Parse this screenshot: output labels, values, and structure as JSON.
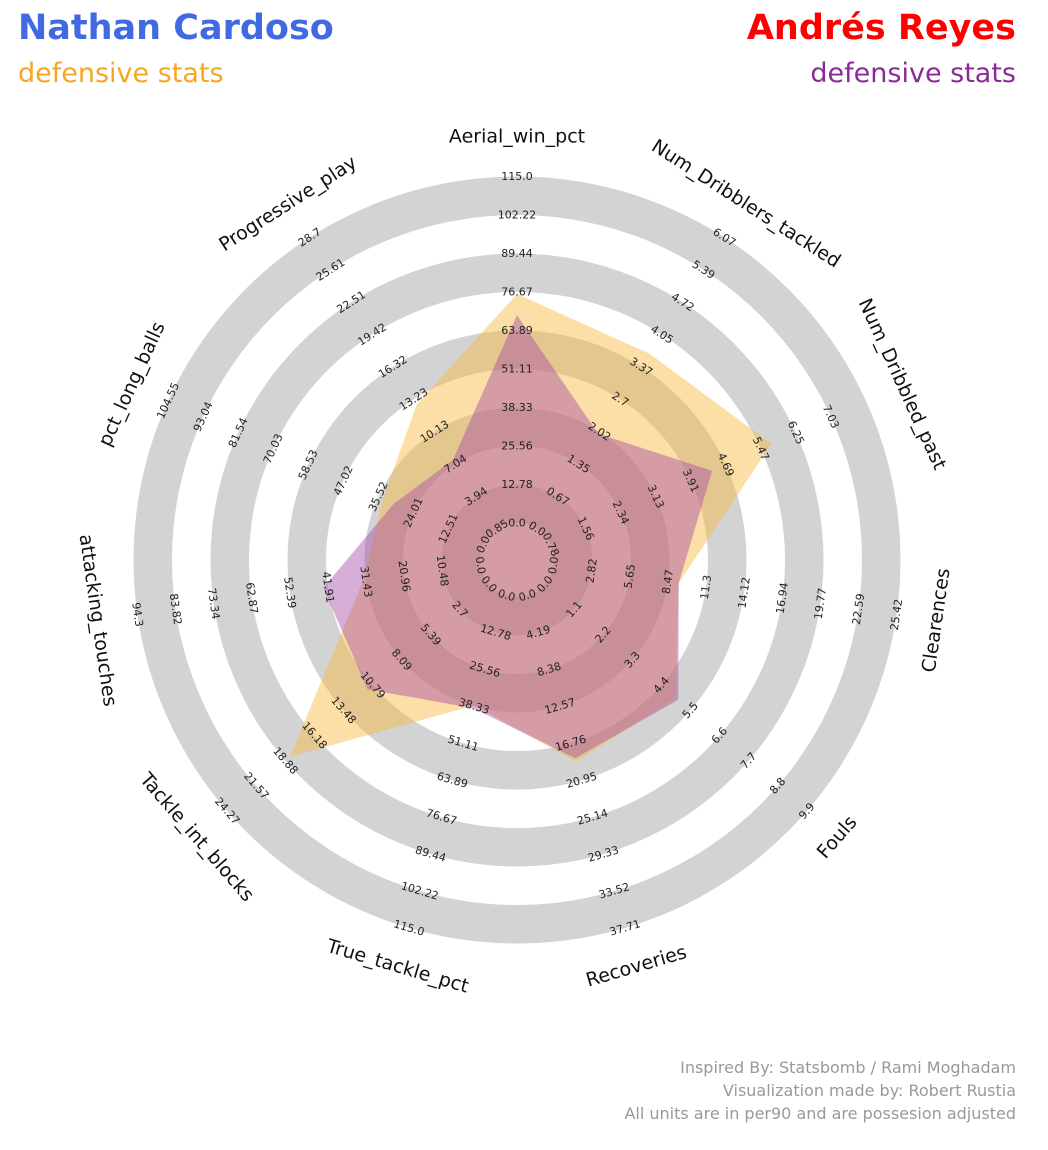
{
  "header": {
    "player1_name": "Nathan Cardoso",
    "player1_subtitle": "defensive stats",
    "player2_name": "Andrés Reyes",
    "player2_subtitle": "defensive stats"
  },
  "colors": {
    "player1_name": "#4169e1",
    "player1_subtitle": "#f5a623",
    "player2_name": "#ff0000",
    "player2_subtitle": "#8b2a96",
    "player1_fill": "#f6b93b",
    "player2_fill": "#a64ca6",
    "ring": "#d3d3d3"
  },
  "credits": {
    "line1": "Inspired By: Statsbomb / Rami Moghadam",
    "line2": "Visualization made by: Robert Rustia",
    "line3": "All units are in per90 and are possesion adjusted"
  },
  "chart_data": {
    "type": "radar",
    "categories": [
      "Aerial_win_pct",
      "Num_Dribblers_tackled",
      "Num_Dribbled_past",
      "Clearences",
      "Fouls",
      "Recoveries",
      "True_tackle_pct",
      "Tackle_int_blocks",
      "attacking_touches",
      "pct_long_balls",
      "Progressive_play"
    ],
    "ranges": [
      [
        0,
        115
      ],
      [
        0,
        6.74
      ],
      [
        0,
        7.81
      ],
      [
        0,
        28.24
      ],
      [
        0,
        11
      ],
      [
        0,
        41.9
      ],
      [
        0,
        115
      ],
      [
        0,
        26.96
      ],
      [
        0,
        104.8
      ],
      [
        0,
        116.16
      ],
      [
        0,
        31.79
      ]
    ],
    "tick_labels": [
      [
        "0.0",
        "12.78",
        "25.56",
        "38.33",
        "51.11",
        "63.89",
        "76.67",
        "89.44",
        "102.22",
        "115.0"
      ],
      [
        "0.0",
        "0.67",
        "1.35",
        "2.02",
        "2.7",
        "3.37",
        "4.05",
        "4.72",
        "5.39",
        "6.07"
      ],
      [
        "0.78",
        "1.56",
        "2.34",
        "3.13",
        "3.91",
        "4.69",
        "5.47",
        "6.25",
        "7.03"
      ],
      [
        "0.0",
        "2.82",
        "5.65",
        "8.47",
        "11.3",
        "14.12",
        "16.94",
        "19.77",
        "22.59",
        "25.42"
      ],
      [
        "0.0",
        "1.1",
        "2.2",
        "3.3",
        "4.4",
        "5.5",
        "6.6",
        "7.7",
        "8.8",
        "9.9"
      ],
      [
        "0.0",
        "4.19",
        "8.38",
        "12.57",
        "16.76",
        "20.95",
        "25.14",
        "29.33",
        "33.52",
        "37.71"
      ],
      [
        "0.0",
        "12.78",
        "25.56",
        "38.33",
        "51.11",
        "63.89",
        "76.67",
        "89.44",
        "102.22",
        "115.0"
      ],
      [
        "0.0",
        "2.7",
        "5.39",
        "8.09",
        "10.79",
        "13.48",
        "16.18",
        "18.88",
        "21.57",
        "24.27"
      ],
      [
        "0.0",
        "10.48",
        "20.96",
        "31.43",
        "41.91",
        "52.39",
        "62.87",
        "73.34",
        "83.82",
        "94.3"
      ],
      [
        "0.0",
        "12.51",
        "24.01",
        "35.52",
        "47.02",
        "58.53",
        "70.03",
        "81.54",
        "93.04",
        "104.55"
      ],
      [
        "0.85",
        "3.94",
        "7.04",
        "10.13",
        "13.23",
        "16.32",
        "19.42",
        "22.51",
        "25.61",
        "28.7"
      ]
    ],
    "series": [
      {
        "name": "Nathan Cardoso",
        "values": [
          76.0,
          4.05,
          5.47,
          10.3,
          5.5,
          20.95,
          38.0,
          20.5,
          36.0,
          37.0,
          13.6
        ]
      },
      {
        "name": "Andrés Reyes",
        "values": [
          69.0,
          2.2,
          4.0,
          10.3,
          5.6,
          20.5,
          39.0,
          12.5,
          48.0,
          33.0,
          7.5
        ]
      }
    ]
  }
}
